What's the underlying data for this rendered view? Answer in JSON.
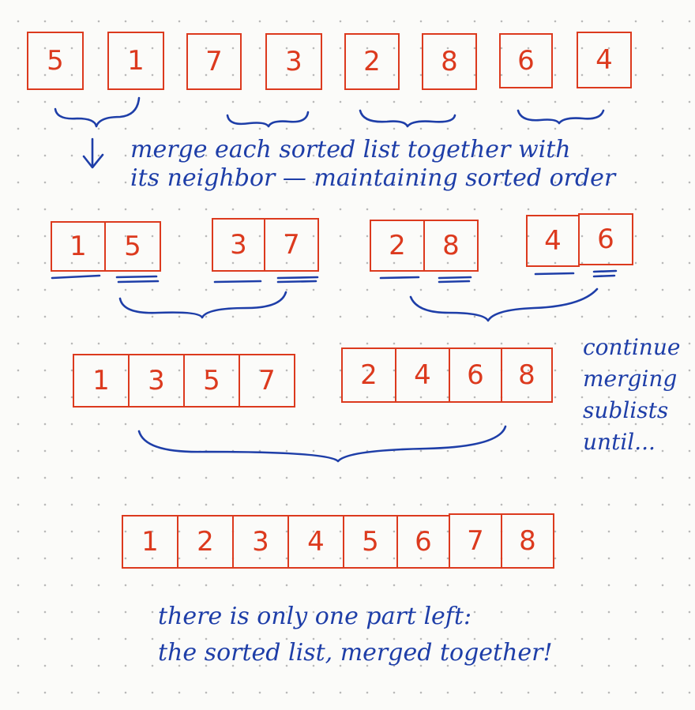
{
  "levels": [
    {
      "groups": [
        [
          "5"
        ],
        [
          "1"
        ],
        [
          "7"
        ],
        [
          "3"
        ],
        [
          "2"
        ],
        [
          "8"
        ],
        [
          "6"
        ],
        [
          "4"
        ]
      ]
    },
    {
      "groups": [
        [
          "1",
          "5"
        ],
        [
          "3",
          "7"
        ],
        [
          "2",
          "8"
        ],
        [
          "4",
          "6"
        ]
      ]
    },
    {
      "groups": [
        [
          "1",
          "3",
          "5",
          "7"
        ],
        [
          "2",
          "4",
          "6",
          "8"
        ]
      ]
    },
    {
      "groups": [
        [
          "1",
          "2",
          "3",
          "4",
          "5",
          "6",
          "7",
          "8"
        ]
      ]
    }
  ],
  "annotations": {
    "merge_step": {
      "line1": "merge each sorted list together with",
      "line2": "its neighbor — maintaining sorted order"
    },
    "continue": {
      "line1": "continue",
      "line2": "merging",
      "line3": "sublists",
      "line4": "until..."
    },
    "final": {
      "line1": "there is only one part left:",
      "line2": "the sorted list, merged together!"
    }
  },
  "colors": {
    "box": "#dc3a1e",
    "ink": "#1e3ea8",
    "paper": "#fbfbf9"
  },
  "icons": {
    "down_arrow": "down-arrow-icon"
  }
}
